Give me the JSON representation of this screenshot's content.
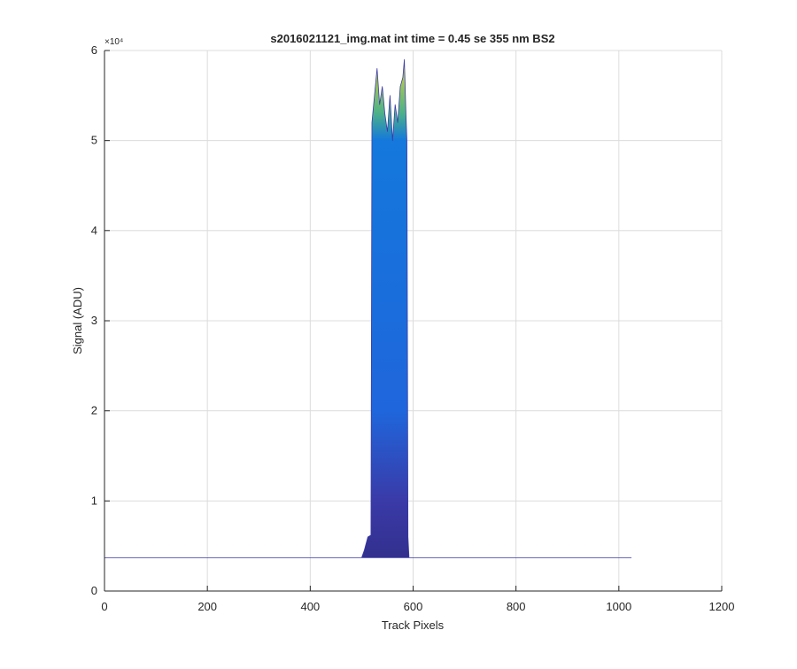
{
  "chart_data": {
    "type": "area",
    "title": "s2016021121_img.mat int time = 0.45 se  355 nm BS2",
    "x_label": "Track Pixels",
    "y_label": "Signal (ADU)",
    "y_exponent": "×10⁴",
    "x": [
      0,
      500,
      505,
      512,
      518,
      520,
      525,
      530,
      535,
      540,
      545,
      550,
      555,
      560,
      565,
      570,
      575,
      580,
      583,
      586,
      588,
      590,
      592,
      600,
      1024
    ],
    "values": [
      0.37,
      0.37,
      0.45,
      0.6,
      0.62,
      5.2,
      5.5,
      5.8,
      5.4,
      5.6,
      5.3,
      5.1,
      5.5,
      5.0,
      5.4,
      5.2,
      5.6,
      5.7,
      5.9,
      5.3,
      5.0,
      0.6,
      0.37,
      0.37,
      0.37
    ],
    "colorscale": [
      {
        "value": 0,
        "color": "#2e2a7e"
      },
      {
        "value": 1,
        "color": "#3a3aa8"
      },
      {
        "value": 2,
        "color": "#1f66dc"
      },
      {
        "value": 5,
        "color": "#1478dc"
      },
      {
        "value": 5.3,
        "color": "#4bb08a"
      },
      {
        "value": 6,
        "color": "#f9de24"
      }
    ],
    "xlim": [
      0,
      1200
    ],
    "xticks": [
      0,
      200,
      400,
      600,
      800,
      1000,
      1200
    ],
    "ylim": [
      0,
      6
    ],
    "yticks": [
      0,
      1,
      2,
      3,
      4,
      5,
      6
    ],
    "grid": true
  }
}
